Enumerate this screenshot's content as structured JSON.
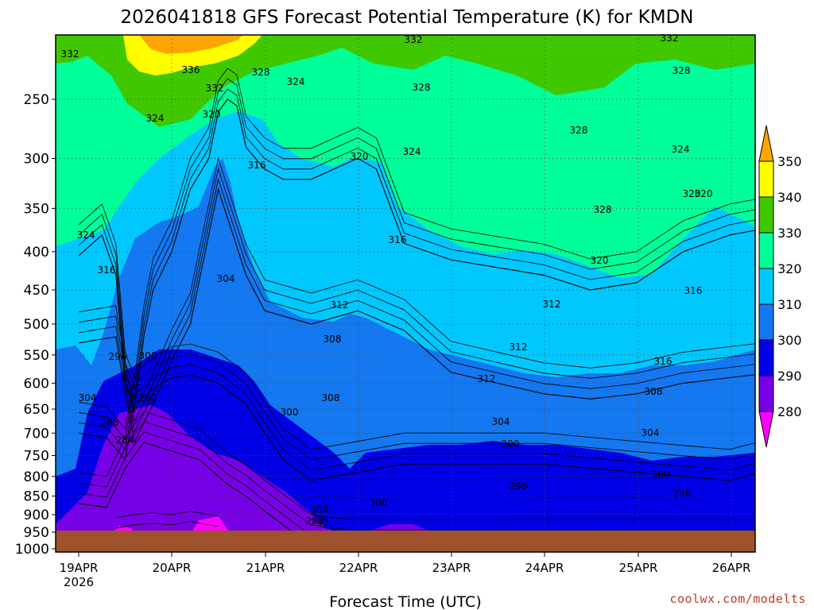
{
  "chart_data": {
    "type": "contour",
    "title": "2026041818 GFS Forecast Potential Temperature (K) for KMDN",
    "xlabel": "Forecast Time (UTC)",
    "ylabel": "",
    "credit": "coolwx.com/modelts",
    "x_ticks": [
      "19APR",
      "20APR",
      "21APR",
      "22APR",
      "23APR",
      "24APR",
      "25APR",
      "26APR"
    ],
    "x_tick_sublabel": "2026",
    "y_ticks": [
      "250",
      "300",
      "350",
      "400",
      "450",
      "500",
      "550",
      "600",
      "650",
      "700",
      "750",
      "800",
      "850",
      "900",
      "950",
      "1000"
    ],
    "y_scale": "log-pressure",
    "ylim_hpa": [
      1010,
      205
    ],
    "colorbar": {
      "labels": [
        "350",
        "340",
        "330",
        "320",
        "310",
        "300",
        "290",
        "280"
      ],
      "bands": [
        {
          "min": 340,
          "max": 350,
          "color": "#ffff00"
        },
        {
          "min": 330,
          "max": 340,
          "color": "#3fc800"
        },
        {
          "min": 320,
          "max": 330,
          "color": "#00ff99"
        },
        {
          "min": 310,
          "max": 320,
          "color": "#00c8ff"
        },
        {
          "min": 300,
          "max": 310,
          "color": "#1478f0"
        },
        {
          "min": 290,
          "max": 300,
          "color": "#0000e6"
        },
        {
          "min": 280,
          "max": 290,
          "color": "#7800e6"
        }
      ],
      "over_color": "#ffa500",
      "under_color": "#ff00ff"
    },
    "series": [
      {
        "name": "320 K level",
        "x_days": [
          0,
          0.25,
          0.4,
          0.5,
          0.6,
          0.7,
          0.8,
          1.0,
          1.2,
          1.4,
          1.5,
          1.6,
          1.7,
          1.8,
          2.0,
          2.2,
          2.5,
          3.0,
          3.2,
          3.5,
          4.0,
          4.5,
          5.0,
          5.5,
          6.0,
          6.5,
          7.0,
          7.5
        ],
        "pressure_hpa": [
          405,
          380,
          430,
          600,
          650,
          520,
          450,
          400,
          330,
          300,
          260,
          250,
          255,
          290,
          310,
          320,
          320,
          300,
          310,
          390,
          410,
          420,
          430,
          450,
          440,
          400,
          380,
          370
        ]
      },
      {
        "name": "310 K level",
        "x_days": [
          0,
          0.4,
          0.5,
          0.6,
          0.8,
          1.0,
          1.2,
          1.5,
          1.8,
          2.0,
          2.5,
          3.0,
          3.5,
          4.0,
          4.5,
          5.0,
          5.5,
          6.0,
          6.5,
          7.0,
          7.5
        ],
        "pressure_hpa": [
          530,
          520,
          620,
          720,
          640,
          560,
          500,
          330,
          430,
          480,
          500,
          480,
          510,
          580,
          600,
          620,
          630,
          620,
          600,
          590,
          580
        ]
      },
      {
        "name": "300 K level",
        "x_days": [
          0,
          0.3,
          0.5,
          0.6,
          0.8,
          1.0,
          1.2,
          1.5,
          1.8,
          2.0,
          2.2,
          2.5,
          3.0,
          3.5,
          4.0,
          4.5,
          5.0,
          5.5,
          6.0,
          6.5,
          7.0,
          7.5
        ],
        "pressure_hpa": [
          700,
          710,
          760,
          640,
          610,
          590,
          585,
          600,
          640,
          700,
          760,
          810,
          790,
          770,
          770,
          770,
          770,
          780,
          790,
          800,
          810,
          780
        ]
      },
      {
        "name": "290 K level",
        "x_days": [
          0,
          0.3,
          0.5,
          0.7,
          1.0,
          1.3,
          1.6,
          1.8,
          2.0,
          2.3,
          2.5,
          2.7,
          3.0,
          3.5,
          4.0,
          5.0,
          6.0,
          7.5
        ],
        "pressure_hpa": [
          870,
          880,
          780,
          720,
          740,
          760,
          820,
          850,
          890,
          950,
          990,
          1000,
          1005,
          1005,
          1005,
          1005,
          1005,
          1005
        ]
      },
      {
        "name": "280 K level",
        "x_days": [
          0.4,
          0.6,
          0.8,
          1.0,
          1.2,
          1.5
        ],
        "pressure_hpa": [
          1000,
          990,
          985,
          990,
          980,
          995
        ]
      }
    ],
    "contour_labels": [
      "332",
      "336",
      "332",
      "328",
      "324",
      "332",
      "328",
      "324",
      "320",
      "316",
      "324",
      "328",
      "320",
      "328",
      "324",
      "332",
      "328",
      "324",
      "320",
      "320",
      "316",
      "312",
      "304",
      "316",
      "312",
      "308",
      "312",
      "316",
      "320",
      "316",
      "312",
      "308",
      "304",
      "300",
      "296",
      "300",
      "292",
      "288",
      "284",
      "300",
      "304",
      "308",
      "304",
      "300",
      "296",
      "300",
      "304",
      "296",
      "292",
      "288"
    ],
    "grid": true,
    "ground_color": "#a0522d"
  }
}
